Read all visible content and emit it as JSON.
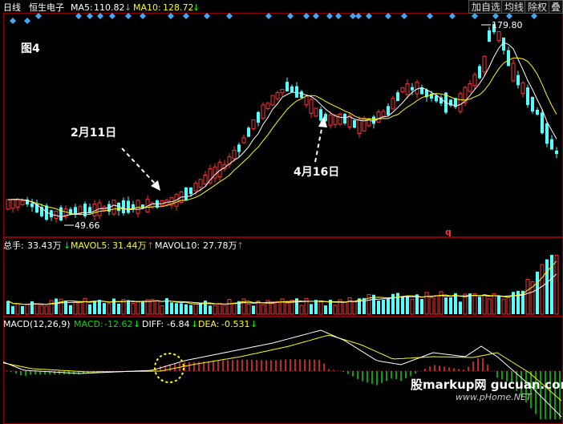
{
  "header": {
    "period": "日线",
    "stock_name": "恒生电子",
    "ma5_label": "MA5:",
    "ma5_value": "110.82",
    "ma5_arrow": "↓",
    "ma10_label": "MA10:",
    "ma10_value": "128.72",
    "ma10_arrow": "↓"
  },
  "toolbar": {
    "add_watch": "加自选",
    "ma_line": "均线",
    "adjust": "除权",
    "overlay": "叠"
  },
  "annotations": {
    "figure_label": "图4",
    "date1": "2月11日",
    "date2": "4月16日",
    "high_price": "179.80",
    "low_price": "49.66",
    "marker_q": "q"
  },
  "volume_header": {
    "total_label": "总手:",
    "total_value": "33.43万",
    "total_arrow": "↓",
    "mavol5_label": "MAVOL5:",
    "mavol5_value": "31.44万",
    "mavol5_arrow": "↑",
    "mavol10_label": "MAVOL10:",
    "mavol10_value": "27.78万",
    "mavol10_arrow": "↑"
  },
  "macd_header": {
    "name": "MACD(12,26,9)",
    "macd_label": "MACD:",
    "macd_value": "-12.62",
    "macd_arrow": "↓",
    "diff_label": "DIFF:",
    "diff_value": "-6.84",
    "diff_arrow": "↓",
    "dea_label": "DEA:",
    "dea_value": "-0.531",
    "dea_arrow": "↓"
  },
  "watermark": {
    "line1": "股markup网 gucuan.com",
    "line2": "www.pHome.NET"
  },
  "colors": {
    "up": "#ff3232",
    "down": "#54ffff",
    "ma5": "#ffffff",
    "ma10": "#ffff00",
    "marker": "#3fa9f5",
    "arrow": "#ffffff",
    "label_white": "#ffffff",
    "macd_green": "#00dd00"
  },
  "chart_data": {
    "type": "candlestick",
    "price_range": [
      49.66,
      179.8
    ],
    "low_point": 49.66,
    "high_point": 179.8,
    "ma5": 110.82,
    "ma10": 128.72,
    "volume": {
      "total": "33.43万",
      "mavol5": "31.44万",
      "mavol10": "27.78万"
    },
    "macd": {
      "macd": -12.62,
      "diff": -6.84,
      "dea": -0.531
    },
    "annotated_dates": [
      "2月11日",
      "4月16日"
    ]
  }
}
